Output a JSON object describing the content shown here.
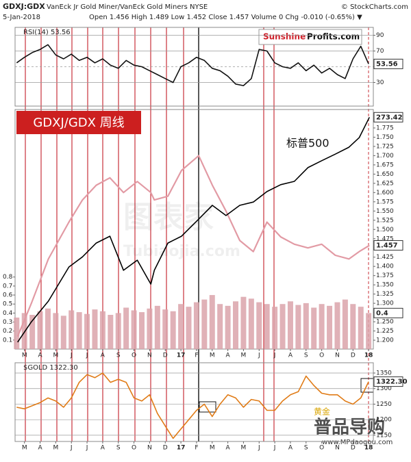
{
  "chart_data": [
    {
      "type": "line",
      "title": "GDXJ:GDX",
      "subtitle": "VanEck Jr Gold Miner/VanEck Gold Miners NYSE",
      "source": "© StockCharts.com",
      "date": "5-Jan-2018",
      "quote": "Open 1.456 High 1.489 Low 1.452 Close 1.457 Volume 0 Chg -0.010 (-0.65%) ▼",
      "legend": "RSI(14) 53.56",
      "logo": [
        "Sunshine",
        "Profits.com"
      ],
      "xlim": [
        -0.6,
        22.3
      ],
      "ylim": [
        0,
        100
      ],
      "yticks": [
        30,
        50,
        70,
        90
      ],
      "grid": true,
      "x": [
        -0.5,
        0,
        0.5,
        1,
        1.5,
        2,
        2.5,
        3,
        3.5,
        4,
        4.5,
        5,
        5.5,
        6,
        6.5,
        7,
        7.5,
        8,
        8.5,
        9,
        9.5,
        10,
        10.5,
        11,
        11.5,
        12,
        12.5,
        13,
        13.5,
        14,
        14.5,
        15,
        15.5,
        16,
        16.5,
        17,
        17.5,
        18,
        18.5,
        19,
        19.5,
        20,
        20.5,
        21,
        21.5,
        22
      ],
      "series": [
        {
          "color": "#111111",
          "last_label": "53.56",
          "values": [
            55,
            62,
            68,
            72,
            78,
            65,
            60,
            66,
            58,
            62,
            55,
            60,
            52,
            48,
            58,
            52,
            50,
            45,
            40,
            35,
            30,
            50,
            55,
            62,
            58,
            48,
            45,
            38,
            28,
            26,
            35,
            72,
            70,
            55,
            50,
            48,
            55,
            45,
            52,
            42,
            48,
            40,
            35,
            60,
            76,
            53.56
          ]
        }
      ]
    },
    {
      "type": "combo",
      "banner": "GDXJ/GDX 周线",
      "annotation": "标普500",
      "watermark": [
        "图表家",
        "Tubiaojia.com"
      ],
      "xlim": [
        -0.6,
        22.3
      ],
      "ylim": [
        1.176,
        1.825
      ],
      "y2lim": [
        0,
        2.66
      ],
      "y3lim": [
        196,
        276
      ],
      "grid": false,
      "yticks": [
        {
          "value": 1.2,
          "label": "1.200"
        },
        1.225,
        {
          "value": 1.25,
          "label": "1.250"
        },
        1.275,
        {
          "value": 1.3,
          "label": "1.300"
        },
        1.325,
        {
          "value": 1.35,
          "label": "1.350"
        },
        1.375,
        {
          "value": 1.4,
          "label": "1.400"
        },
        1.425,
        {
          "value": 1.45,
          "label": "1.450"
        },
        1.475,
        {
          "value": 1.5,
          "label": "1.500"
        },
        1.525,
        {
          "value": 1.55,
          "label": "1.550"
        },
        1.575,
        {
          "value": 1.6,
          "label": "1.600"
        },
        1.625,
        {
          "value": 1.65,
          "label": "1.650"
        },
        1.675,
        {
          "value": 1.7,
          "label": "1.700"
        },
        1.725,
        {
          "value": 1.75,
          "label": "1.750"
        },
        1.775
      ],
      "y2ticks": [
        0.1,
        0.2,
        0.3,
        0.4,
        0.5,
        0.6,
        0.7,
        0.8
      ],
      "xticks": [
        {
          "value": 0,
          "label": "M"
        },
        {
          "value": 1,
          "label": "A"
        },
        {
          "value": 2,
          "label": "M"
        },
        {
          "value": 3,
          "label": "J"
        },
        {
          "value": 4,
          "label": "J"
        },
        {
          "value": 5,
          "label": "A"
        },
        {
          "value": 6,
          "label": "S"
        },
        {
          "value": 7,
          "label": "O"
        },
        {
          "value": 8,
          "label": "N"
        },
        {
          "value": 9,
          "label": "D"
        },
        {
          "value": 10,
          "label": "17"
        },
        {
          "value": 11,
          "label": "F"
        },
        {
          "value": 12,
          "label": "M"
        },
        {
          "value": 13,
          "label": "A"
        },
        {
          "value": 14,
          "label": "M"
        },
        {
          "value": 15,
          "label": "J"
        },
        {
          "value": 16,
          "label": "J"
        },
        {
          "value": 17,
          "label": "A"
        },
        {
          "value": 18,
          "label": "S"
        },
        {
          "value": 19,
          "label": "O"
        },
        {
          "value": 20,
          "label": "N"
        },
        {
          "value": 21,
          "label": "D"
        },
        {
          "value": 22,
          "label": "18"
        }
      ],
      "x": [
        -0.44,
        0.44,
        1.53,
        2.84,
        3.71,
        4.59,
        5.46,
        6.33,
        7.21,
        8.08,
        8.3,
        9.17,
        10.04,
        11.14,
        12.01,
        12.88,
        13.76,
        14.63,
        15.5,
        16.38,
        17.25,
        18.12,
        19,
        19.87,
        20.74,
        21.4,
        22.05
      ],
      "series": [
        {
          "type": "bar",
          "axis": "y2",
          "color": "#dba3aa",
          "last_label": "0.4",
          "x": [
            -0.5,
            0,
            0.5,
            1,
            1.5,
            2,
            2.5,
            3,
            3.5,
            4,
            4.5,
            5,
            5.5,
            6,
            6.5,
            7,
            7.5,
            8,
            8.5,
            9,
            9.5,
            10,
            10.5,
            11,
            11.5,
            12,
            12.5,
            13,
            13.5,
            14,
            14.5,
            15,
            15.5,
            16,
            16.5,
            17,
            17.5,
            18,
            18.5,
            19,
            19.5,
            20,
            20.5,
            21,
            21.5,
            22
          ],
          "values": [
            0.35,
            0.4,
            0.38,
            0.42,
            0.45,
            0.4,
            0.37,
            0.43,
            0.41,
            0.39,
            0.44,
            0.42,
            0.38,
            0.4,
            0.46,
            0.43,
            0.41,
            0.45,
            0.48,
            0.44,
            0.42,
            0.5,
            0.47,
            0.52,
            0.55,
            0.6,
            0.5,
            0.48,
            0.53,
            0.58,
            0.56,
            0.52,
            0.5,
            0.47,
            0.5,
            0.53,
            0.49,
            0.51,
            0.46,
            0.5,
            0.48,
            0.52,
            0.55,
            0.5,
            0.47,
            0.4
          ]
        },
        {
          "type": "line",
          "axis": "y",
          "color": "#e29aa4",
          "last_label": "1.457",
          "values": [
            1.21,
            1.3,
            1.42,
            1.52,
            1.58,
            1.62,
            1.64,
            1.6,
            1.63,
            1.6,
            1.58,
            1.59,
            1.66,
            1.7,
            1.62,
            1.55,
            1.47,
            1.44,
            1.52,
            1.48,
            1.46,
            1.45,
            1.46,
            1.43,
            1.42,
            1.44,
            1.457
          ]
        },
        {
          "type": "line",
          "axis": "y3",
          "color": "#000000",
          "last_label": "273.42",
          "values": [
            198.3,
            205.1,
            212,
            223.4,
            226.8,
            231.4,
            233.7,
            222.3,
            225.7,
            217.7,
            222.3,
            231.4,
            233.7,
            239.4,
            244,
            240.6,
            244,
            245.1,
            248.6,
            250.9,
            252,
            256.6,
            258.9,
            261.1,
            263.4,
            266.6,
            273.42
          ]
        }
      ]
    },
    {
      "type": "line",
      "legend": "$GOLD 1322.30",
      "annotation": "黄金",
      "watermark": [
        "普品导购",
        "www.MPdaogou.com"
      ],
      "xlim": [
        -0.6,
        22.3
      ],
      "ylim": [
        1130,
        1383
      ],
      "yticks": [
        1150,
        1200,
        1250,
        1300,
        1350
      ],
      "grid": true,
      "xticks": [
        {
          "value": 0,
          "label": "M"
        },
        {
          "value": 1,
          "label": "A"
        },
        {
          "value": 2,
          "label": "M"
        },
        {
          "value": 3,
          "label": "J"
        },
        {
          "value": 4,
          "label": "J"
        },
        {
          "value": 5,
          "label": "A"
        },
        {
          "value": 6,
          "label": "S"
        },
        {
          "value": 7,
          "label": "O"
        },
        {
          "value": 8,
          "label": "N"
        },
        {
          "value": 9,
          "label": "D"
        },
        {
          "value": 10,
          "label": "17"
        },
        {
          "value": 11,
          "label": "F"
        },
        {
          "value": 12,
          "label": "M"
        },
        {
          "value": 13,
          "label": "A"
        },
        {
          "value": 14,
          "label": "M"
        },
        {
          "value": 15,
          "label": "J"
        },
        {
          "value": 16,
          "label": "J"
        },
        {
          "value": 17,
          "label": "A"
        },
        {
          "value": 18,
          "label": "S"
        },
        {
          "value": 19,
          "label": "O"
        },
        {
          "value": 20,
          "label": "N"
        },
        {
          "value": 21,
          "label": "D"
        },
        {
          "value": 22,
          "label": "18"
        }
      ],
      "x": [
        -0.5,
        0,
        0.5,
        1,
        1.5,
        2,
        2.5,
        3,
        3.5,
        4,
        4.5,
        5,
        5.5,
        6,
        6.5,
        7,
        7.5,
        8,
        8.5,
        9,
        9.5,
        10,
        10.5,
        11,
        11.5,
        12,
        12.5,
        13,
        13.5,
        14,
        14.5,
        15,
        15.5,
        16,
        16.5,
        17,
        17.5,
        18,
        18.5,
        19,
        19.5,
        20,
        20.5,
        21,
        21.5,
        22
      ],
      "series": [
        {
          "color": "#e07b16",
          "last_label": "1322.30",
          "values": [
            1240,
            1235,
            1245,
            1255,
            1270,
            1260,
            1240,
            1270,
            1320,
            1345,
            1335,
            1350,
            1320,
            1330,
            1320,
            1270,
            1260,
            1280,
            1220,
            1180,
            1140,
            1170,
            1200,
            1230,
            1250,
            1210,
            1250,
            1280,
            1270,
            1240,
            1265,
            1260,
            1230,
            1230,
            1260,
            1280,
            1290,
            1340,
            1310,
            1285,
            1280,
            1280,
            1260,
            1250,
            1270,
            1322.3
          ]
        }
      ]
    }
  ]
}
